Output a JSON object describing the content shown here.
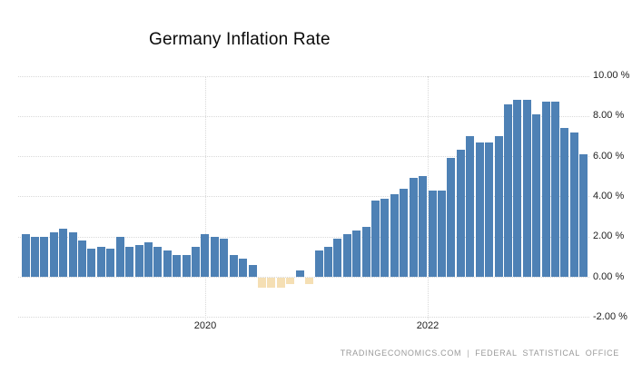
{
  "title": "Germany Inflation Rate",
  "footer": {
    "source_primary": "TRADINGECONOMICS.COM",
    "separator": "|",
    "source_secondary": "FEDERAL STATISTICAL OFFICE"
  },
  "chart_data": {
    "type": "bar",
    "title": "Germany Inflation Rate",
    "unit": "%",
    "xlabel": "",
    "ylabel": "",
    "ylim": [
      -2.1,
      10
    ],
    "grid": "dotted",
    "legend": "none",
    "y_axis_side": "right",
    "y_tick_labels": [
      "10.00 %",
      "8.00 %",
      "6.00 %",
      "4.00 %",
      "2.00 %",
      "0.00 %",
      "-2.00 %"
    ],
    "y_tick_values": [
      10,
      8,
      6,
      4,
      2,
      0,
      -2
    ],
    "x_tick_labels": [
      "2020",
      "2022"
    ],
    "x_tick_months": [
      "2020-01",
      "2022-01"
    ],
    "positive_color": "#4e81b5",
    "negative_color": "#f5dfb4",
    "categories": [
      "2018-06",
      "2018-07",
      "2018-08",
      "2018-09",
      "2018-10",
      "2018-11",
      "2018-12",
      "2019-01",
      "2019-02",
      "2019-03",
      "2019-04",
      "2019-05",
      "2019-06",
      "2019-07",
      "2019-08",
      "2019-09",
      "2019-10",
      "2019-11",
      "2019-12",
      "2020-01",
      "2020-02",
      "2020-03",
      "2020-04",
      "2020-05",
      "2020-06",
      "2020-07",
      "2020-08",
      "2020-09",
      "2020-10",
      "2020-11",
      "2020-12",
      "2021-01",
      "2021-02",
      "2021-03",
      "2021-04",
      "2021-05",
      "2021-06",
      "2021-07",
      "2021-08",
      "2021-09",
      "2021-10",
      "2021-11",
      "2021-12",
      "2022-01",
      "2022-02",
      "2022-03",
      "2022-04",
      "2022-05",
      "2022-06",
      "2022-07",
      "2022-08",
      "2022-09",
      "2022-10",
      "2022-11",
      "2022-12",
      "2023-01",
      "2023-02",
      "2023-03",
      "2023-04",
      "2023-05"
    ],
    "values": [
      2.1,
      2.0,
      2.0,
      2.2,
      2.4,
      2.2,
      1.8,
      1.4,
      1.5,
      1.4,
      2.0,
      1.5,
      1.6,
      1.7,
      1.5,
      1.3,
      1.1,
      1.1,
      1.5,
      2.1,
      2.0,
      1.9,
      1.1,
      0.9,
      0.6,
      -0.5,
      -0.5,
      -0.5,
      -0.3,
      0.3,
      -0.3,
      1.3,
      1.5,
      1.9,
      2.1,
      2.3,
      2.5,
      3.8,
      3.9,
      4.1,
      4.4,
      4.9,
      5.0,
      4.3,
      4.3,
      5.9,
      6.3,
      7.0,
      6.7,
      6.7,
      7.0,
      8.6,
      8.8,
      8.8,
      8.1,
      8.7,
      8.7,
      7.4,
      7.2,
      6.1
    ]
  }
}
